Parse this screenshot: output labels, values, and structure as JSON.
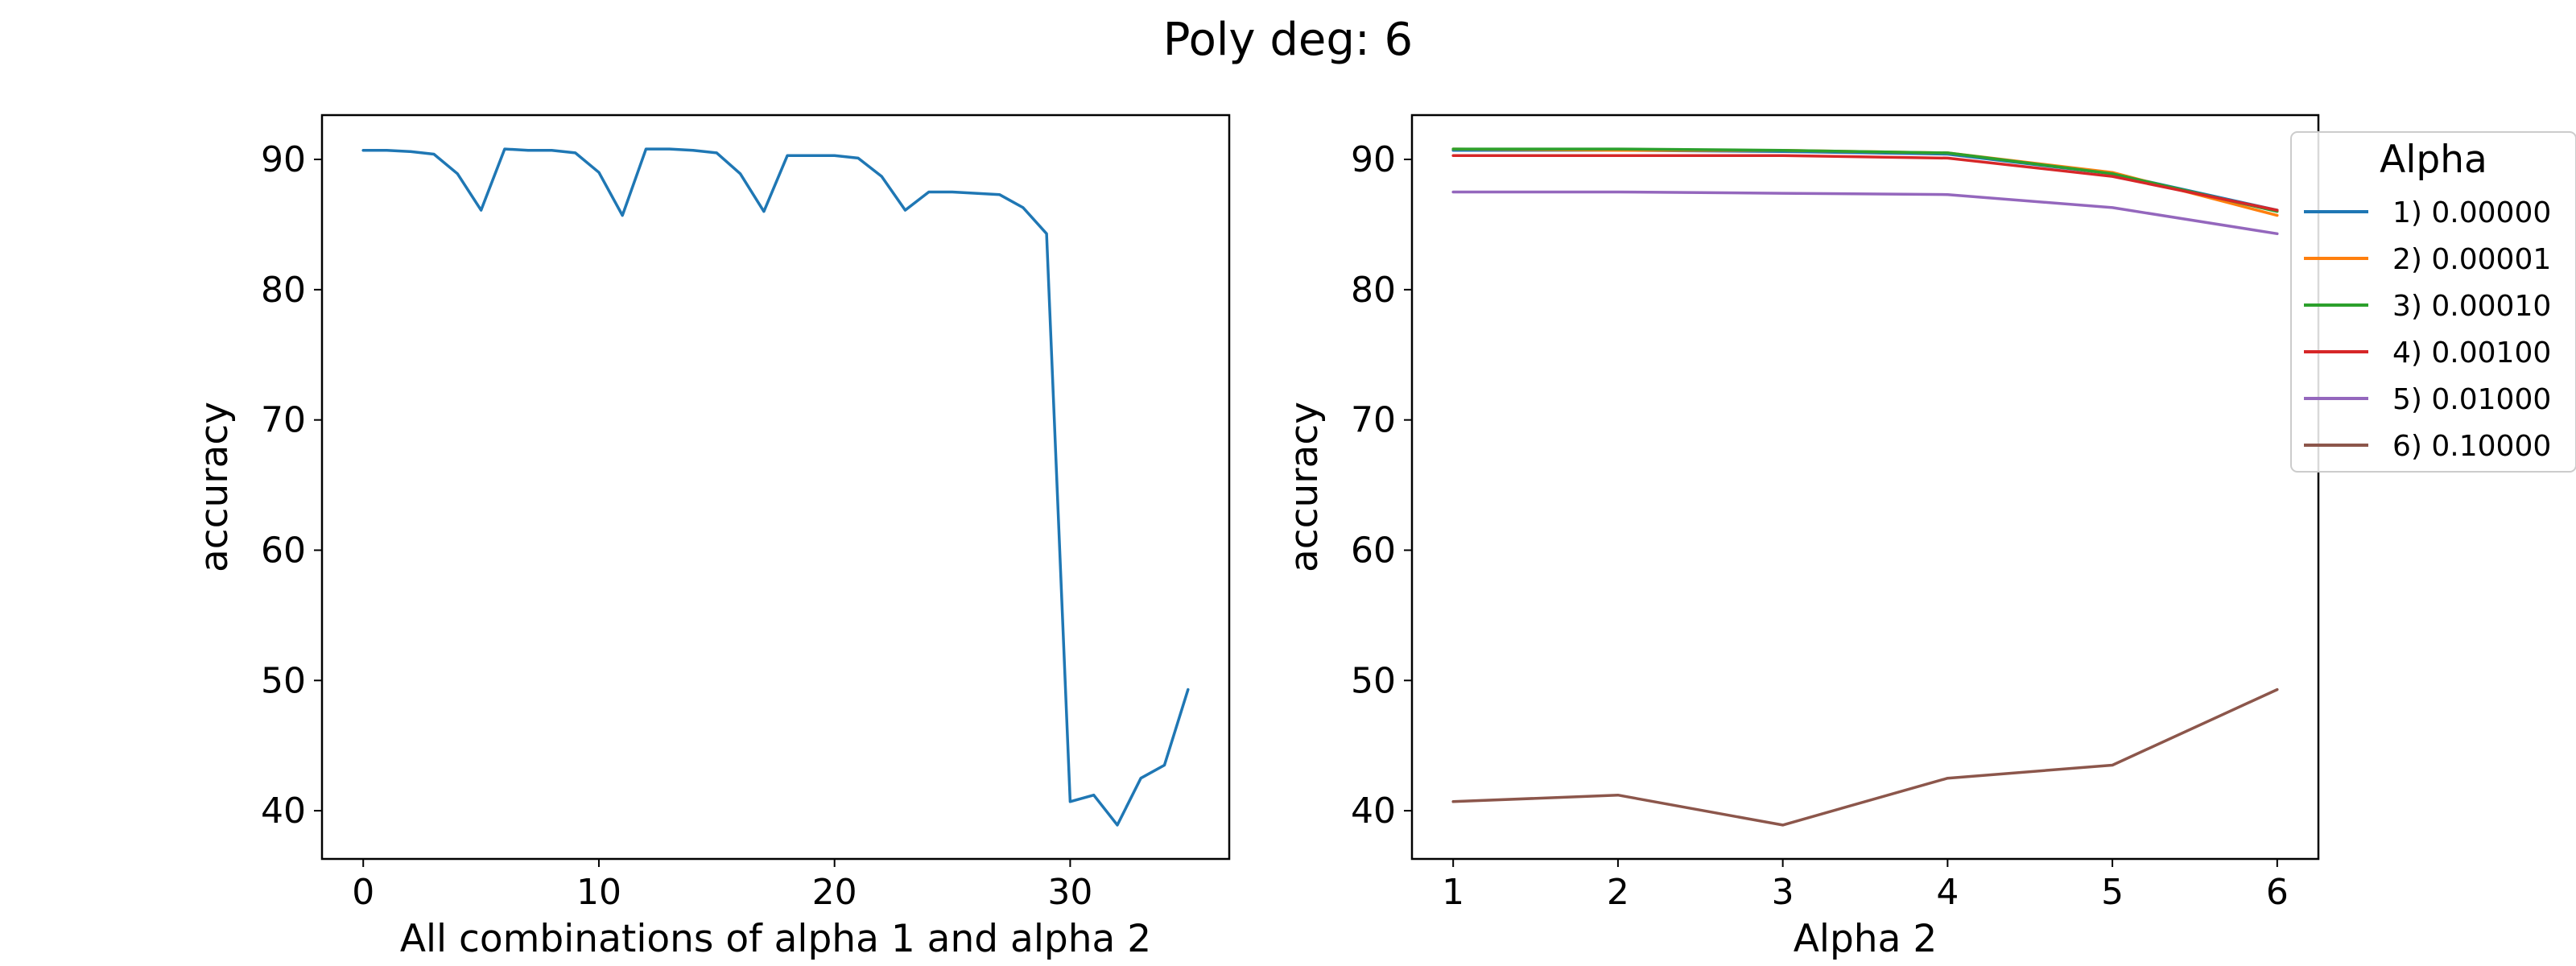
{
  "suptitle": "Poly deg: 6",
  "chart_data": [
    {
      "type": "line",
      "xlabel": "All combinations of alpha 1 and alpha 2",
      "ylabel": "accuracy",
      "xlim": [
        -1.75,
        36.75
      ],
      "ylim": [
        36.3,
        93.4
      ],
      "xticks": [
        0,
        10,
        20,
        30
      ],
      "yticks": [
        40,
        50,
        60,
        70,
        80,
        90
      ],
      "grid": false,
      "series": [
        {
          "color": "#1f77b4",
          "x": [
            0,
            1,
            2,
            3,
            4,
            5,
            6,
            7,
            8,
            9,
            10,
            11,
            12,
            13,
            14,
            15,
            16,
            17,
            18,
            19,
            20,
            21,
            22,
            23,
            24,
            25,
            26,
            27,
            28,
            29,
            30,
            31,
            32,
            33,
            34,
            35
          ],
          "y": [
            90.7,
            90.7,
            90.6,
            90.4,
            88.9,
            86.1,
            90.8,
            90.7,
            90.7,
            90.5,
            89.0,
            85.7,
            90.8,
            90.8,
            90.7,
            90.5,
            88.9,
            86.0,
            90.3,
            90.3,
            90.3,
            90.1,
            88.7,
            86.1,
            87.5,
            87.5,
            87.4,
            87.3,
            86.3,
            84.3,
            40.7,
            41.2,
            38.9,
            42.5,
            43.5,
            49.3
          ]
        }
      ]
    },
    {
      "type": "line",
      "xlabel": "Alpha 2",
      "ylabel": "accuracy",
      "xlim": [
        0.75,
        6.25
      ],
      "ylim": [
        36.3,
        93.4
      ],
      "xticks": [
        1,
        2,
        3,
        4,
        5,
        6
      ],
      "yticks": [
        40,
        50,
        60,
        70,
        80,
        90
      ],
      "grid": false,
      "legend": {
        "title": "Alpha",
        "placement": "outside top-right"
      },
      "x": [
        1,
        2,
        3,
        4,
        5,
        6
      ],
      "series": [
        {
          "name": "1) 0.00000",
          "color": "#1f77b4",
          "values": [
            90.7,
            90.7,
            90.6,
            90.4,
            88.9,
            86.1
          ]
        },
        {
          "name": "2) 0.00001",
          "color": "#ff7f0e",
          "values": [
            90.8,
            90.7,
            90.7,
            90.5,
            89.0,
            85.7
          ]
        },
        {
          "name": "3) 0.00010",
          "color": "#2ca02c",
          "values": [
            90.8,
            90.8,
            90.7,
            90.5,
            88.9,
            86.0
          ]
        },
        {
          "name": "4) 0.00100",
          "color": "#d62728",
          "values": [
            90.3,
            90.3,
            90.3,
            90.1,
            88.7,
            86.1
          ]
        },
        {
          "name": "5) 0.01000",
          "color": "#9467bd",
          "values": [
            87.5,
            87.5,
            87.4,
            87.3,
            86.3,
            84.3
          ]
        },
        {
          "name": "6) 0.10000",
          "color": "#8c564b",
          "values": [
            40.7,
            41.2,
            38.9,
            42.5,
            43.5,
            49.3
          ]
        }
      ]
    }
  ]
}
